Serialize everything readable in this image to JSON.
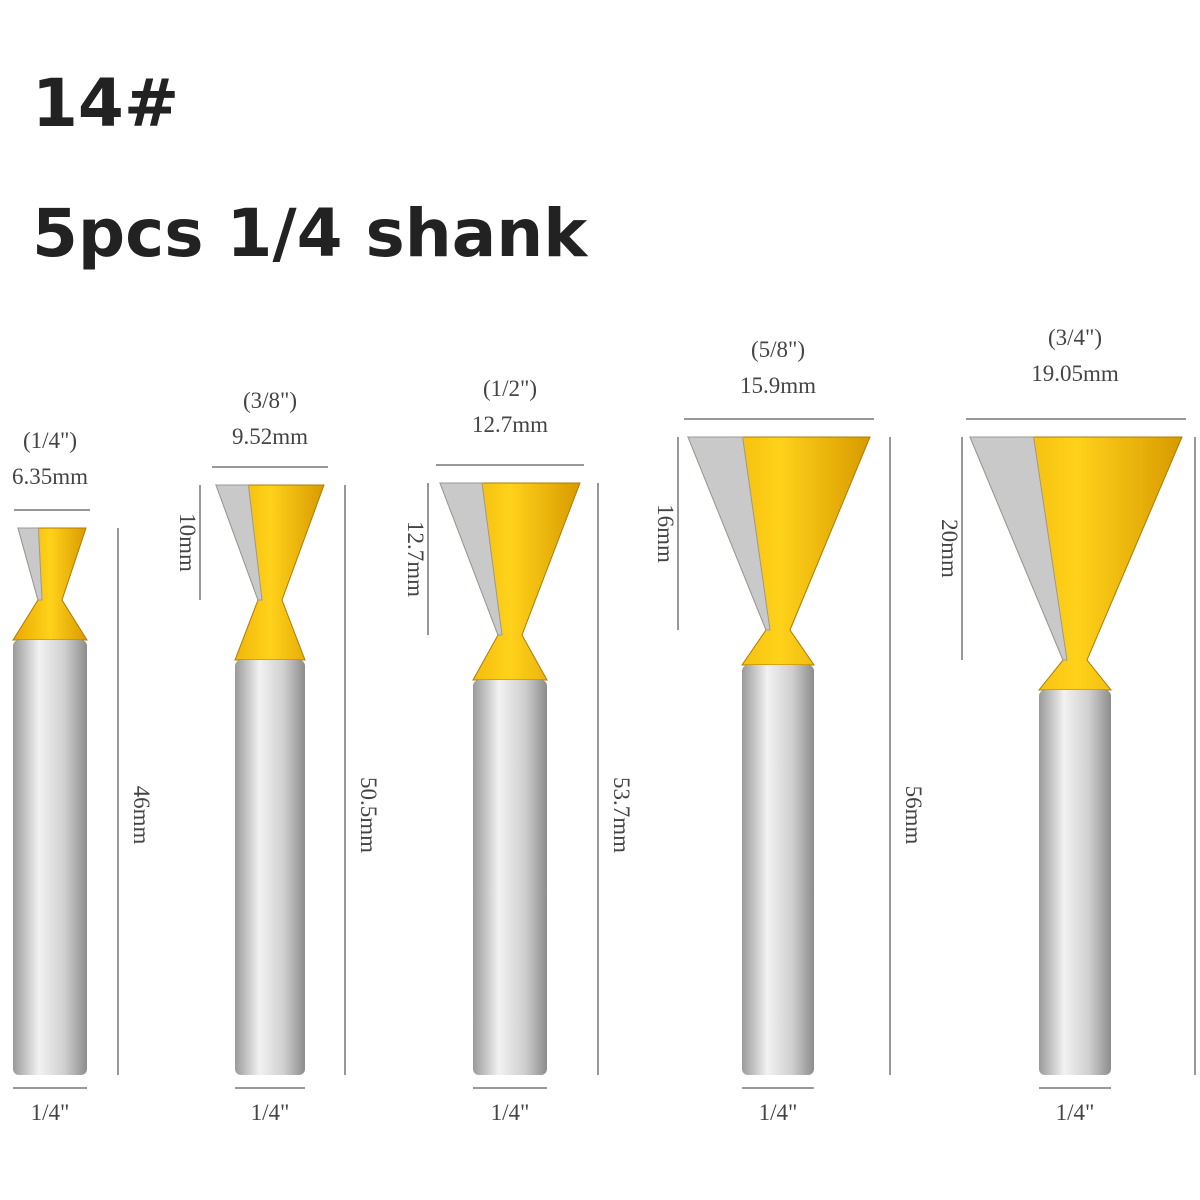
{
  "header": {
    "title": "14#",
    "subtitle": "5pcs 1/4 shank"
  },
  "bits": [
    {
      "inch": "(1/4\")",
      "diameter": "6.35mm",
      "length": "46mm",
      "shank": "1/4\""
    },
    {
      "inch": "(3/8\")",
      "diameter": "9.52mm",
      "cut_height": "10mm",
      "length": "50.5mm",
      "shank": "1/4\""
    },
    {
      "inch": "(1/2\")",
      "diameter": "12.7mm",
      "cut_height": "12.7mm",
      "length": "53.7mm",
      "shank": "1/4\""
    },
    {
      "inch": "(5/8\")",
      "diameter": "15.9mm",
      "cut_height": "16mm",
      "length": "56mm",
      "shank": "1/4\""
    },
    {
      "inch": "(3/4\")",
      "diameter": "19.05mm",
      "cut_height": "20mm",
      "shank": "1/4\""
    }
  ]
}
